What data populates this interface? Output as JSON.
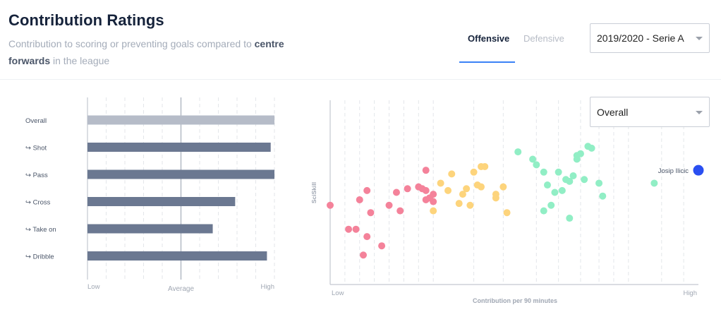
{
  "header": {
    "title": "Contribution Ratings",
    "subtitle_pre": "Contribution to scoring or preventing goals compared to ",
    "subtitle_bold": "centre forwards",
    "subtitle_post": " in the league"
  },
  "tabs": [
    {
      "label": "Offensive",
      "active": true
    },
    {
      "label": "Defensive",
      "active": false
    }
  ],
  "season_select": {
    "value": "2019/2020 - Serie A",
    "icon": "chevron-down-icon"
  },
  "metric_select": {
    "value": "Overall",
    "icon": "chevron-down-icon"
  },
  "colors": {
    "accent": "#3b82f6",
    "overall_bar": "#b6bcc8",
    "bar": "#6b7891",
    "red": "#f4829a",
    "yellow": "#fdd47c",
    "green": "#91eec5",
    "highlight": "#2a4ff1"
  },
  "chart_data": [
    {
      "type": "bar",
      "orientation": "horizontal",
      "categories": [
        "Overall",
        "↪ Shot",
        "↪ Pass",
        "↪ Cross",
        "↪ Take on",
        "↪ Dribble"
      ],
      "values": [
        1.0,
        0.98,
        1.0,
        0.79,
        0.67,
        0.96
      ],
      "scale": {
        "min_label": "Low",
        "mid_label": "Average",
        "max_label": "High"
      }
    },
    {
      "type": "scatter",
      "xlabel": "Contribution per 90 minutes",
      "ylabel": "SciSkill",
      "x_min_label": "Low",
      "x_max_label": "High",
      "xlim": [
        0,
        1
      ],
      "ylim": [
        0,
        1
      ],
      "highlight": {
        "label": "Josip Ilicic",
        "x": 1.0,
        "y": 0.62
      },
      "series": [
        {
          "color": "red",
          "points": [
            [
              0.0,
              0.43
            ],
            [
              0.08,
              0.46
            ],
            [
              0.11,
              0.39
            ],
            [
              0.1,
              0.51
            ],
            [
              0.19,
              0.4
            ],
            [
              0.16,
              0.43
            ],
            [
              0.26,
              0.62
            ],
            [
              0.25,
              0.52
            ],
            [
              0.26,
              0.51
            ],
            [
              0.24,
              0.53
            ],
            [
              0.18,
              0.5
            ],
            [
              0.21,
              0.52
            ],
            [
              0.26,
              0.46
            ],
            [
              0.28,
              0.45
            ],
            [
              0.27,
              0.47
            ],
            [
              0.28,
              0.49
            ],
            [
              0.05,
              0.3
            ],
            [
              0.1,
              0.26
            ],
            [
              0.14,
              0.21
            ],
            [
              0.09,
              0.16
            ],
            [
              0.07,
              0.3
            ]
          ]
        },
        {
          "color": "yellow",
          "points": [
            [
              0.3,
              0.55
            ],
            [
              0.33,
              0.6
            ],
            [
              0.32,
              0.51
            ],
            [
              0.36,
              0.49
            ],
            [
              0.37,
              0.52
            ],
            [
              0.39,
              0.61
            ],
            [
              0.4,
              0.54
            ],
            [
              0.41,
              0.53
            ],
            [
              0.41,
              0.64
            ],
            [
              0.42,
              0.64
            ],
            [
              0.45,
              0.47
            ],
            [
              0.45,
              0.49
            ],
            [
              0.47,
              0.53
            ],
            [
              0.48,
              0.39
            ],
            [
              0.35,
              0.44
            ],
            [
              0.38,
              0.43
            ],
            [
              0.28,
              0.4
            ]
          ]
        },
        {
          "color": "green",
          "points": [
            [
              0.51,
              0.72
            ],
            [
              0.55,
              0.68
            ],
            [
              0.56,
              0.65
            ],
            [
              0.58,
              0.61
            ],
            [
              0.59,
              0.54
            ],
            [
              0.6,
              0.43
            ],
            [
              0.62,
              0.61
            ],
            [
              0.64,
              0.57
            ],
            [
              0.65,
              0.56
            ],
            [
              0.67,
              0.7
            ],
            [
              0.68,
              0.71
            ],
            [
              0.7,
              0.75
            ],
            [
              0.71,
              0.74
            ],
            [
              0.69,
              0.57
            ],
            [
              0.63,
              0.51
            ],
            [
              0.61,
              0.5
            ],
            [
              0.74,
              0.48
            ],
            [
              0.88,
              0.55
            ],
            [
              0.65,
              0.36
            ],
            [
              0.58,
              0.4
            ],
            [
              0.66,
              0.59
            ],
            [
              0.67,
              0.68
            ],
            [
              0.73,
              0.55
            ]
          ]
        }
      ]
    }
  ]
}
